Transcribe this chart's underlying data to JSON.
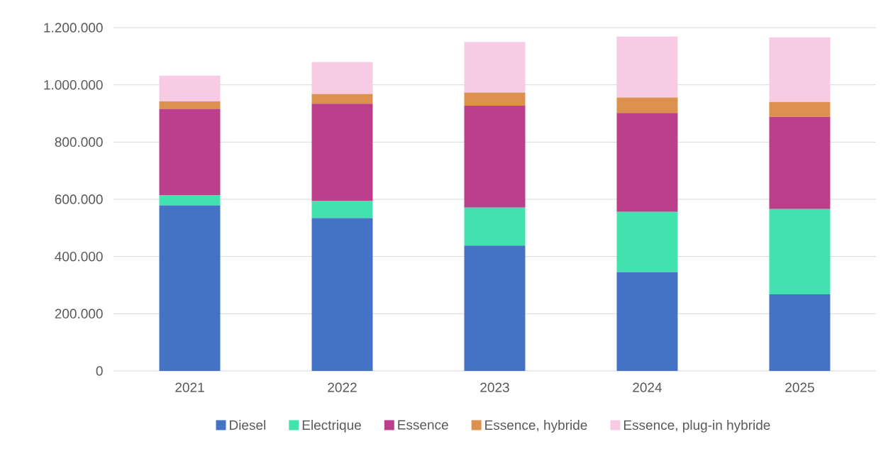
{
  "chart_data": {
    "type": "bar",
    "stacked": true,
    "categories": [
      "2021",
      "2022",
      "2023",
      "2024",
      "2025"
    ],
    "series": [
      {
        "name": "Diesel",
        "color": "#4472c4",
        "values": [
          579000,
          534000,
          438000,
          345000,
          268000
        ]
      },
      {
        "name": "Electrique",
        "color": "#41e2ae",
        "values": [
          36000,
          61000,
          133000,
          211000,
          298000
        ]
      },
      {
        "name": "Essence",
        "color": "#bb3f8b",
        "values": [
          301000,
          339000,
          356000,
          346000,
          322000
        ]
      },
      {
        "name": "Essence, hybride",
        "color": "#dc914f",
        "values": [
          26000,
          34000,
          46000,
          54000,
          52000
        ]
      },
      {
        "name": "Essence, plug-in hybride",
        "color": "#f8cbe4",
        "values": [
          90000,
          112000,
          177000,
          213000,
          226000
        ]
      }
    ],
    "ylim": [
      0,
      1200000
    ],
    "yticks": [
      {
        "value": 0,
        "label": "0"
      },
      {
        "value": 200000,
        "label": "200.000"
      },
      {
        "value": 400000,
        "label": "400.000"
      },
      {
        "value": 600000,
        "label": "600.000"
      },
      {
        "value": 800000,
        "label": "800.000"
      },
      {
        "value": 1000000,
        "label": "1.000.000"
      },
      {
        "value": 1200000,
        "label": "1.200.000"
      }
    ],
    "grid": "y",
    "legend": "bottom"
  }
}
